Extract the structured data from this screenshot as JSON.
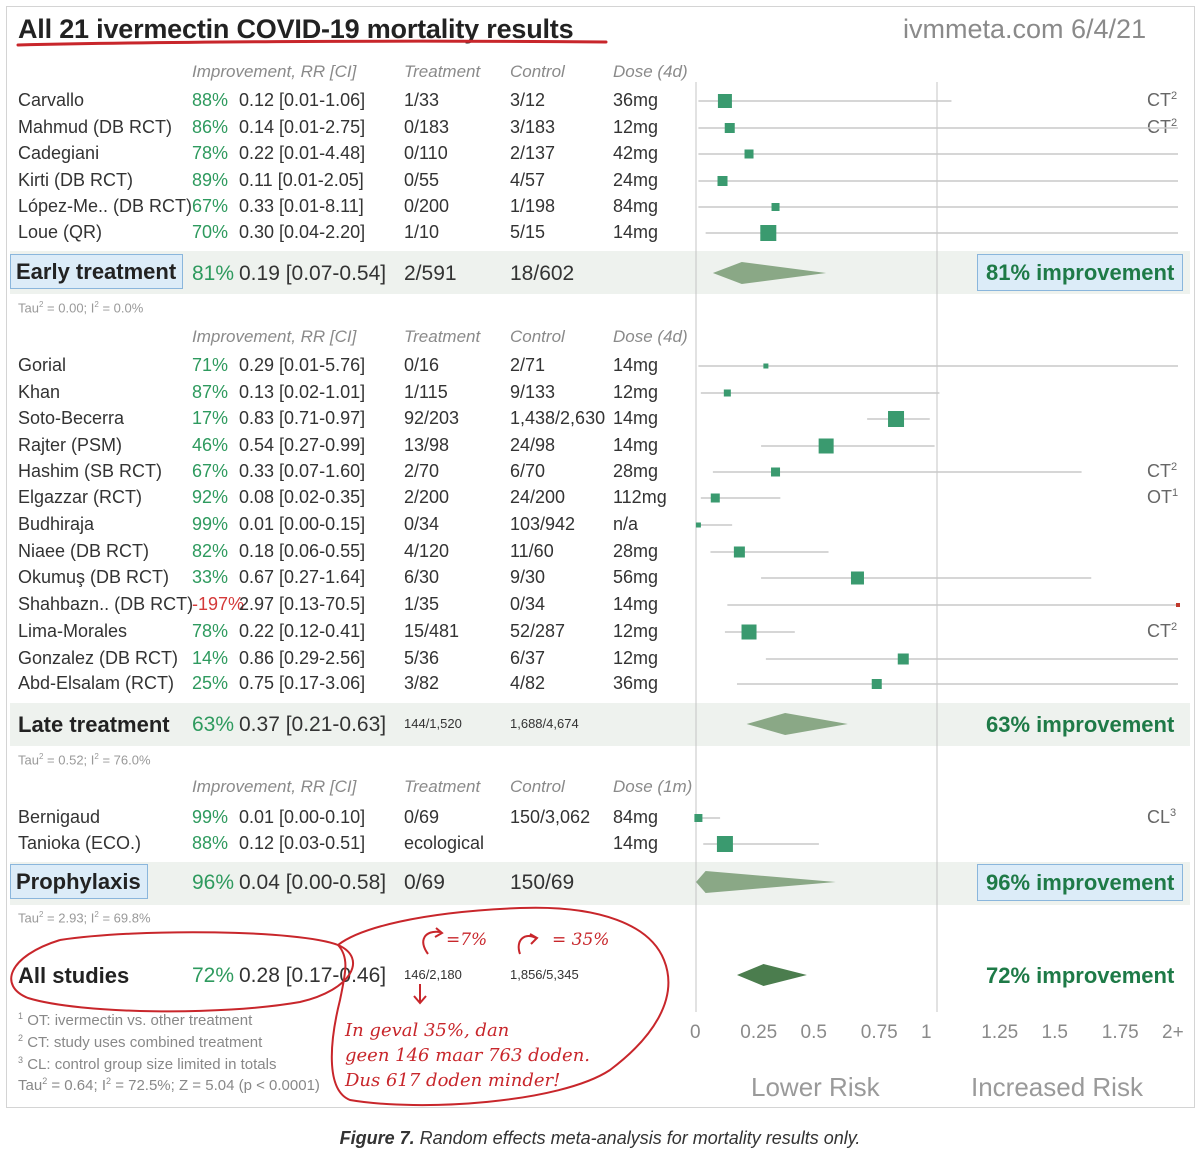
{
  "header": {
    "title": "All 21 ivermectin COVID-19 mortality results",
    "site": "ivmmeta.com 6/4/21"
  },
  "column_headers": {
    "improvement": "Improvement, RR [CI]",
    "treatment": "Treatment",
    "control": "Control",
    "dose_4d": "Dose (4d)",
    "dose_1m": "Dose (1m)"
  },
  "early": {
    "studies": [
      {
        "name": "Carvallo",
        "imp": "88%",
        "rr": "0.12 [0.01-1.06]",
        "treatment": "1/33",
        "control": "3/12",
        "dose": "36mg",
        "note": "CT",
        "note_sup": "2"
      },
      {
        "name": "Mahmud (DB RCT)",
        "imp": "86%",
        "rr": "0.14 [0.01-2.75]",
        "treatment": "0/183",
        "control": "3/183",
        "dose": "12mg",
        "note": "CT",
        "note_sup": "2"
      },
      {
        "name": "Cadegiani",
        "imp": "78%",
        "rr": "0.22 [0.01-4.48]",
        "treatment": "0/110",
        "control": "2/137",
        "dose": "42mg",
        "note": "",
        "note_sup": ""
      },
      {
        "name": "Kirti (DB RCT)",
        "imp": "89%",
        "rr": "0.11 [0.01-2.05]",
        "treatment": "0/55",
        "control": "4/57",
        "dose": "24mg",
        "note": "",
        "note_sup": ""
      },
      {
        "name": "López-Me.. (DB RCT)",
        "imp": "67%",
        "rr": "0.33 [0.01-8.11]",
        "treatment": "0/200",
        "control": "1/198",
        "dose": "84mg",
        "note": "",
        "note_sup": ""
      },
      {
        "name": "Loue (QR)",
        "imp": "70%",
        "rr": "0.30 [0.04-2.20]",
        "treatment": "1/10",
        "control": "5/15",
        "dose": "14mg",
        "note": "",
        "note_sup": ""
      }
    ],
    "summary": {
      "label": "Early treatment",
      "imp": "81%",
      "rr": "0.19 [0.07-0.54]",
      "treatment": "2/591",
      "control": "18/602",
      "improvement_text": "81% improvement"
    },
    "tau": {
      "tau_val": "= 0.00; I",
      "i2_val": "= 0.0%"
    }
  },
  "late": {
    "studies": [
      {
        "name": "Gorial",
        "imp": "71%",
        "rr": "0.29 [0.01-5.76]",
        "treatment": "0/16",
        "control": "2/71",
        "dose": "14mg",
        "note": "",
        "note_sup": ""
      },
      {
        "name": "Khan",
        "imp": "87%",
        "rr": "0.13 [0.02-1.01]",
        "treatment": "1/115",
        "control": "9/133",
        "dose": "12mg",
        "note": "",
        "note_sup": ""
      },
      {
        "name": "Soto-Becerra",
        "imp": "17%",
        "rr": "0.83 [0.71-0.97]",
        "treatment": "92/203",
        "control": "1,438/2,630",
        "dose": "14mg",
        "note": "",
        "note_sup": ""
      },
      {
        "name": "Rajter (PSM)",
        "imp": "46%",
        "rr": "0.54 [0.27-0.99]",
        "treatment": "13/98",
        "control": "24/98",
        "dose": "14mg",
        "note": "",
        "note_sup": ""
      },
      {
        "name": "Hashim (SB RCT)",
        "imp": "67%",
        "rr": "0.33 [0.07-1.60]",
        "treatment": "2/70",
        "control": "6/70",
        "dose": "28mg",
        "note": "CT",
        "note_sup": "2"
      },
      {
        "name": "Elgazzar (RCT)",
        "imp": "92%",
        "rr": "0.08 [0.02-0.35]",
        "treatment": "2/200",
        "control": "24/200",
        "dose": "112mg",
        "note": "OT",
        "note_sup": "1"
      },
      {
        "name": "Budhiraja",
        "imp": "99%",
        "rr": "0.01 [0.00-0.15]",
        "treatment": "0/34",
        "control": "103/942",
        "dose": "n/a",
        "note": "",
        "note_sup": ""
      },
      {
        "name": "Niaee (DB RCT)",
        "imp": "82%",
        "rr": "0.18 [0.06-0.55]",
        "treatment": "4/120",
        "control": "11/60",
        "dose": "28mg",
        "note": "",
        "note_sup": ""
      },
      {
        "name": "Okumuş (DB RCT)",
        "imp": "33%",
        "rr": "0.67 [0.27-1.64]",
        "treatment": "6/30",
        "control": "9/30",
        "dose": "56mg",
        "note": "",
        "note_sup": ""
      },
      {
        "name": "Shahbazn.. (DB RCT)",
        "imp": "-197%",
        "rr": "2.97 [0.13-70.5]",
        "treatment": "1/35",
        "control": "0/34",
        "dose": "14mg",
        "note": "",
        "note_sup": ""
      },
      {
        "name": "Lima-Morales",
        "imp": "78%",
        "rr": "0.22 [0.12-0.41]",
        "treatment": "15/481",
        "control": "52/287",
        "dose": "12mg",
        "note": "CT",
        "note_sup": "2"
      },
      {
        "name": "Gonzalez (DB RCT)",
        "imp": "14%",
        "rr": "0.86 [0.29-2.56]",
        "treatment": "5/36",
        "control": "6/37",
        "dose": "12mg",
        "note": "",
        "note_sup": ""
      },
      {
        "name": "Abd-Elsalam (RCT)",
        "imp": "25%",
        "rr": "0.75 [0.17-3.06]",
        "treatment": "3/82",
        "control": "4/82",
        "dose": "36mg",
        "note": "",
        "note_sup": ""
      }
    ],
    "summary": {
      "label": "Late treatment",
      "imp": "63%",
      "rr": "0.37 [0.21-0.63]",
      "treatment": "144/1,520",
      "control": "1,688/4,674",
      "improvement_text": "63% improvement"
    },
    "tau": {
      "tau_val": "= 0.52; I",
      "i2_val": "= 76.0%"
    }
  },
  "prophylaxis": {
    "studies": [
      {
        "name": "Bernigaud",
        "imp": "99%",
        "rr": "0.01 [0.00-0.10]",
        "treatment": "0/69",
        "control": "150/3,062",
        "dose": "84mg",
        "note": "CL",
        "note_sup": "3"
      },
      {
        "name": "Tanioka (ECO.)",
        "imp": "88%",
        "rr": "0.12 [0.03-0.51]",
        "treatment": "ecological",
        "control": "",
        "dose": "14mg",
        "note": "",
        "note_sup": ""
      }
    ],
    "summary": {
      "label": "Prophylaxis",
      "imp": "96%",
      "rr": "0.04 [0.00-0.58]",
      "treatment": "0/69",
      "control": "150/69",
      "improvement_text": "96% improvement"
    },
    "tau": {
      "tau_val": "= 2.93; I",
      "i2_val": "= 69.8%"
    }
  },
  "all": {
    "label": "All studies",
    "imp": "72%",
    "rr": "0.28 [0.17-0.46]",
    "treatment": "146/2,180",
    "control": "1,856/5,345",
    "improvement_text": "72% improvement"
  },
  "footnotes": {
    "fn1": "OT: ivermectin vs. other treatment",
    "fn2": "CT: study uses combined treatment",
    "fn3": "CL: control group size limited in totals",
    "tau_prefix": "Tau",
    "tau_rest": "= 0.64; I",
    "i2_rest": "= 72.5%; Z = 5.04 (p < 0.0001)"
  },
  "axis": {
    "ticks": [
      "0",
      "0.25",
      "0.5",
      "0.75",
      "1",
      "1.25",
      "1.5",
      "1.75",
      "2+"
    ],
    "lower": "Lower Risk",
    "higher": "Increased Risk"
  },
  "handwriting": {
    "pct1": "=7%",
    "pct2": "= 35%",
    "line1": "In geval 35%, dan",
    "line2": "geen 146 maar 763 doden.",
    "line3": "Dus 617 doden minder!"
  },
  "caption": {
    "bold": "Figure 7.",
    "text": " Random effects meta-analysis for mortality results only."
  },
  "colors": {
    "square": "#3a9a6f",
    "diamond": "#8aa886",
    "diamond_all": "#4b7d4e",
    "band": "#eef2ee",
    "ink": "#c8262b"
  },
  "chart_data": {
    "type": "forest",
    "title": "All 21 ivermectin COVID-19 mortality results",
    "xlim": [
      0,
      2
    ],
    "x_ticks": [
      0,
      0.25,
      0.5,
      0.75,
      1,
      1.25,
      1.5,
      1.75,
      2
    ],
    "groups": [
      {
        "name": "Early treatment",
        "studies": [
          {
            "name": "Carvallo",
            "rr": 0.12,
            "lo": 0.01,
            "hi": 1.06,
            "w": 14
          },
          {
            "name": "Mahmud (DB RCT)",
            "rr": 0.14,
            "lo": 0.01,
            "hi": 2.75,
            "w": 10
          },
          {
            "name": "Cadegiani",
            "rr": 0.22,
            "lo": 0.01,
            "hi": 4.48,
            "w": 9
          },
          {
            "name": "Kirti (DB RCT)",
            "rr": 0.11,
            "lo": 0.01,
            "hi": 2.05,
            "w": 10
          },
          {
            "name": "López-Me.. (DB RCT)",
            "rr": 0.33,
            "lo": 0.01,
            "hi": 8.11,
            "w": 8
          },
          {
            "name": "Loue (QR)",
            "rr": 0.3,
            "lo": 0.04,
            "hi": 2.2,
            "w": 16
          }
        ],
        "pooled": {
          "rr": 0.19,
          "lo": 0.07,
          "hi": 0.54
        }
      },
      {
        "name": "Late treatment",
        "studies": [
          {
            "name": "Gorial",
            "rr": 0.29,
            "lo": 0.01,
            "hi": 5.76,
            "w": 5
          },
          {
            "name": "Khan",
            "rr": 0.13,
            "lo": 0.02,
            "hi": 1.01,
            "w": 7
          },
          {
            "name": "Soto-Becerra",
            "rr": 0.83,
            "lo": 0.71,
            "hi": 0.97,
            "w": 16
          },
          {
            "name": "Rajter (PSM)",
            "rr": 0.54,
            "lo": 0.27,
            "hi": 0.99,
            "w": 15
          },
          {
            "name": "Hashim (SB RCT)",
            "rr": 0.33,
            "lo": 0.07,
            "hi": 1.6,
            "w": 9
          },
          {
            "name": "Elgazzar (RCT)",
            "rr": 0.08,
            "lo": 0.02,
            "hi": 0.35,
            "w": 9
          },
          {
            "name": "Budhiraja",
            "rr": 0.01,
            "lo": 0.0,
            "hi": 0.15,
            "w": 5
          },
          {
            "name": "Niaee (DB RCT)",
            "rr": 0.18,
            "lo": 0.06,
            "hi": 0.55,
            "w": 11
          },
          {
            "name": "Okumuş (DB RCT)",
            "rr": 0.67,
            "lo": 0.27,
            "hi": 1.64,
            "w": 13
          },
          {
            "name": "Shahbazn.. (DB RCT)",
            "rr": 2.97,
            "lo": 0.13,
            "hi": 70.5,
            "w": 5
          },
          {
            "name": "Lima-Morales",
            "rr": 0.22,
            "lo": 0.12,
            "hi": 0.41,
            "w": 15
          },
          {
            "name": "Gonzalez (DB RCT)",
            "rr": 0.86,
            "lo": 0.29,
            "hi": 2.56,
            "w": 11
          },
          {
            "name": "Abd-Elsalam (RCT)",
            "rr": 0.75,
            "lo": 0.17,
            "hi": 3.06,
            "w": 10
          }
        ],
        "pooled": {
          "rr": 0.37,
          "lo": 0.21,
          "hi": 0.63
        }
      },
      {
        "name": "Prophylaxis",
        "studies": [
          {
            "name": "Bernigaud",
            "rr": 0.01,
            "lo": 0.0,
            "hi": 0.1,
            "w": 8
          },
          {
            "name": "Tanioka (ECO.)",
            "rr": 0.12,
            "lo": 0.03,
            "hi": 0.51,
            "w": 16
          }
        ],
        "pooled": {
          "rr": 0.04,
          "lo": 0.0,
          "hi": 0.58
        }
      },
      {
        "name": "All studies",
        "studies": [],
        "pooled": {
          "rr": 0.28,
          "lo": 0.17,
          "hi": 0.46
        }
      }
    ]
  }
}
